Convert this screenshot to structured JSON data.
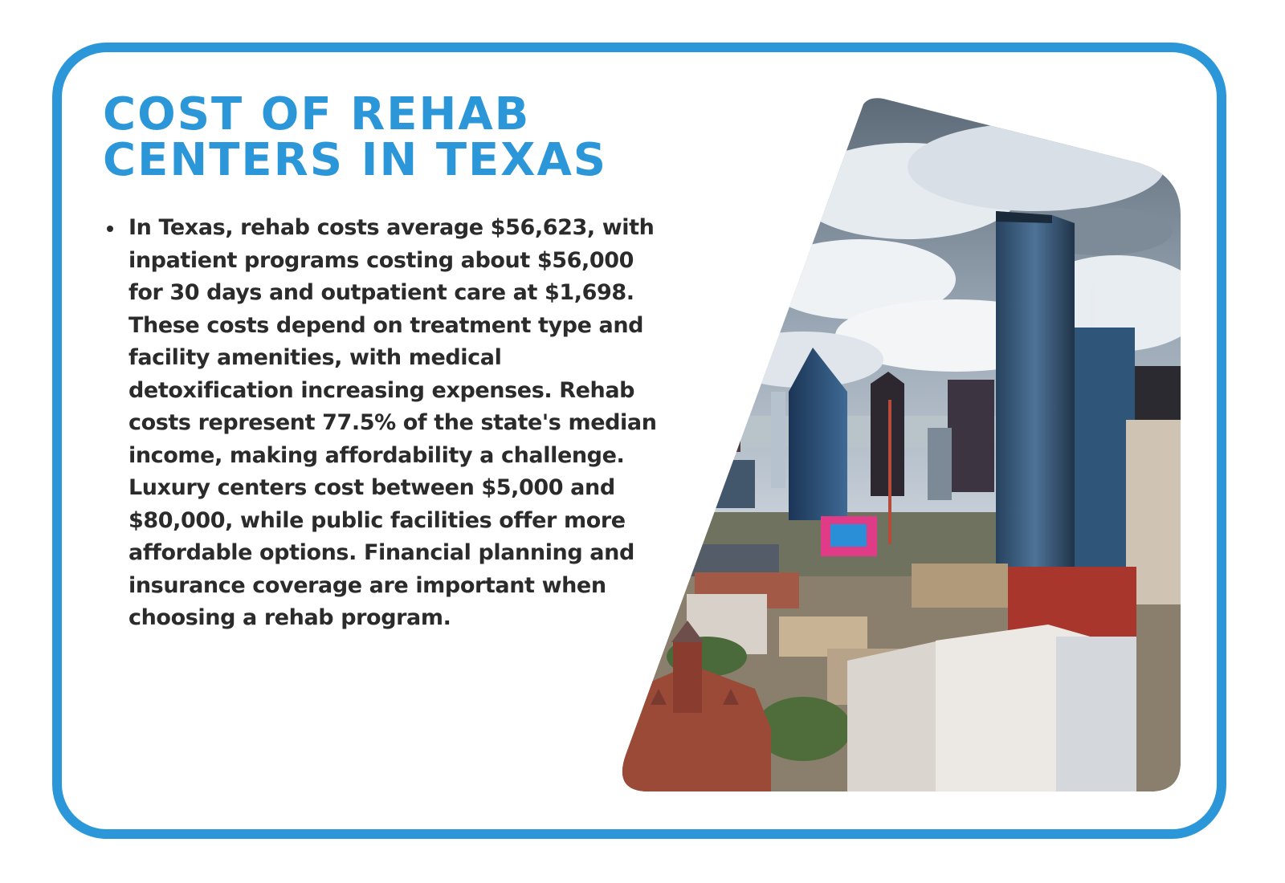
{
  "title": {
    "line1": "COST OF REHAB",
    "line2": "CENTERS IN TEXAS"
  },
  "bullets": [
    "In Texas, rehab costs average $56,623, with inpatient programs costing about $56,000 for 30 days and outpatient care at $1,698. These costs depend on treatment type and facility amenities, with medical detoxification increasing expenses. Rehab costs represent 77.5% of the state's median income, making affordability a challenge. Luxury centers cost between $5,000 and $80,000, while public facilities offer more affordable options. Financial planning and insurance coverage are important when choosing a rehab program."
  ],
  "colors": {
    "accent": "#2b97d8",
    "text": "#2b2b2b"
  },
  "photo": {
    "icon": "dallas-skyline-photo"
  }
}
